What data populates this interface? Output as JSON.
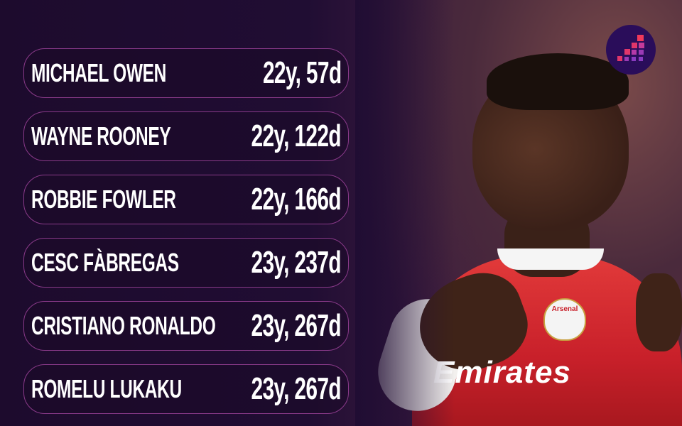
{
  "branding": {
    "logo": "stepped-squares-logo",
    "colors": {
      "background": "#200d33",
      "pill_border": "#8a3a8a",
      "logo_bg": "#2a0d5a",
      "logo_accent": "#f0395a"
    }
  },
  "photo": {
    "sponsor_text": "Emirates",
    "crest_text": "Arsenal"
  },
  "rows": [
    {
      "name": "MICHAEL OWEN",
      "age": "22y, 57d"
    },
    {
      "name": "WAYNE ROONEY",
      "age": "22y, 122d"
    },
    {
      "name": "ROBBIE FOWLER",
      "age": "22y, 166d"
    },
    {
      "name": "CESC FÀBREGAS",
      "age": "23y, 237d"
    },
    {
      "name": "CRISTIANO RONALDO",
      "age": "23y, 267d"
    },
    {
      "name": "ROMELU LUKAKU",
      "age": "23y, 267d"
    }
  ]
}
